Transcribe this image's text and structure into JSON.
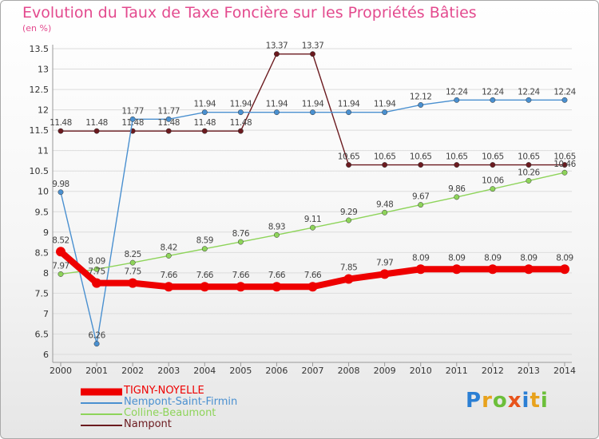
{
  "chart_data": {
    "type": "line",
    "title": "Evolution du Taux de Taxe Foncière sur les Propriétés Bâties",
    "ylabel": "(en %)",
    "xlabel": "",
    "ylim": [
      6,
      13.5
    ],
    "yticks": [
      "6",
      "6.5",
      "7",
      "7.5",
      "8",
      "8.5",
      "9",
      "9.5",
      "10",
      "10.5",
      "11",
      "11.5",
      "12",
      "12.5",
      "13",
      "13.5"
    ],
    "categories": [
      "2000",
      "2001",
      "2002",
      "2003",
      "2004",
      "2005",
      "2006",
      "2007",
      "2008",
      "2009",
      "2010",
      "2011",
      "2012",
      "2013",
      "2014"
    ],
    "series": [
      {
        "name": "Nampont",
        "color": "#6b1a1f",
        "values": [
          11.48,
          11.48,
          11.48,
          11.48,
          11.48,
          11.48,
          13.37,
          13.37,
          10.65,
          10.65,
          10.65,
          10.65,
          10.65,
          10.65,
          10.65
        ],
        "labels": [
          "11.48",
          "11.48",
          "11.48",
          "11.48",
          "11.48",
          "11.48",
          "13.37",
          "13.37",
          "10.65",
          "10.65",
          "10.65",
          "10.65",
          "10.65",
          "10.65",
          "10.65"
        ]
      },
      {
        "name": "Nempont-Saint-Firmin",
        "color": "#4a90d0",
        "values": [
          9.98,
          6.26,
          11.77,
          11.77,
          11.94,
          11.94,
          11.94,
          11.94,
          11.94,
          11.94,
          12.12,
          12.24,
          12.24,
          12.24,
          12.24
        ],
        "labels": [
          "9.98",
          "6.26",
          "11.77",
          "11.77",
          "11.94",
          "11.94",
          "11.94",
          "11.94",
          "11.94",
          "11.94",
          "12.12",
          "12.24",
          "12.24",
          "12.24",
          "12.24"
        ]
      },
      {
        "name": "Colline-Beaumont",
        "color": "#8ed45a",
        "values": [
          7.97,
          8.09,
          8.25,
          8.42,
          8.59,
          8.76,
          8.93,
          9.11,
          9.29,
          9.48,
          9.67,
          9.86,
          10.06,
          10.26,
          10.46
        ],
        "labels": [
          "7.97",
          "8.09",
          "8.25",
          "8.42",
          "8.59",
          "8.76",
          "8.93",
          "9.11",
          "9.29",
          "9.48",
          "9.67",
          "9.86",
          "10.06",
          "10.26",
          "10.46"
        ]
      },
      {
        "name": "TIGNY-NOYELLE",
        "color": "#ee0000",
        "values": [
          8.52,
          7.75,
          7.75,
          7.66,
          7.66,
          7.66,
          7.66,
          7.66,
          7.85,
          7.97,
          8.09,
          8.09,
          8.09,
          8.09,
          8.09
        ],
        "labels": [
          "8.52",
          "7.75",
          "7.75",
          "7.66",
          "7.66",
          "7.66",
          "7.66",
          "7.66",
          "7.85",
          "7.97",
          "8.09",
          "8.09",
          "8.09",
          "8.09",
          "8.09"
        ]
      }
    ],
    "legend": [
      {
        "name": "TIGNY-NOYELLE",
        "color": "#ee0000"
      },
      {
        "name": "Nempont-Saint-Firmin",
        "color": "#4a90d0"
      },
      {
        "name": "Colline-Beaumont",
        "color": "#8ed45a"
      },
      {
        "name": "Nampont",
        "color": "#6b1a1f"
      }
    ],
    "legend_position": "bottom-left",
    "grid": "horizontal"
  },
  "logo": {
    "letters": [
      "P",
      "r",
      "o",
      "x",
      "i",
      "t",
      "i"
    ],
    "colors": [
      "#2b7fd4",
      "#e8a21c",
      "#6cbf3a",
      "#e8541c",
      "#2b7fd4",
      "#e8a21c",
      "#6cbf3a"
    ]
  }
}
